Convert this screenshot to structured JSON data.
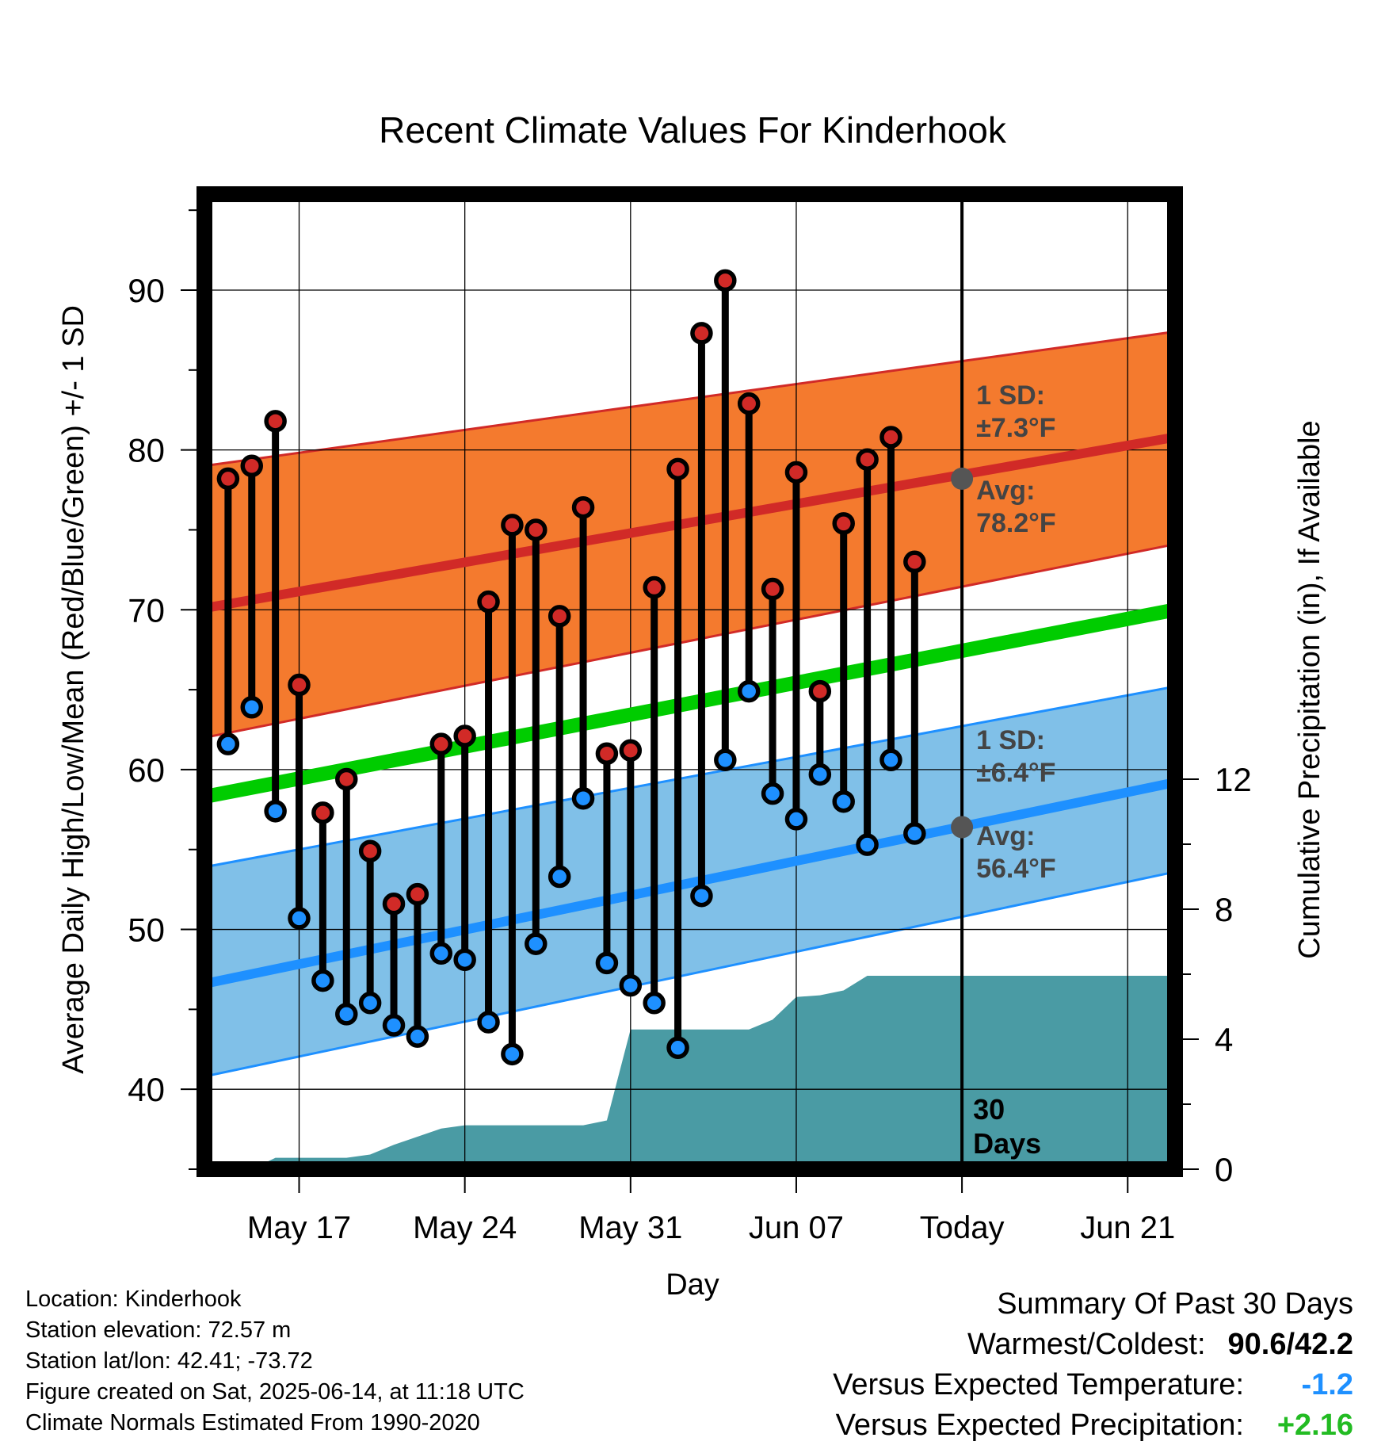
{
  "chart_data": {
    "type": "line",
    "title": "Recent Climate Values For Kinderhook",
    "xlabel": "Day",
    "ylabel": "Average Daily High/Low/Mean (Red/Blue/Green) +/- 1 SD",
    "y2label": "Cumulative Precipitation (in), If Available",
    "ylim": [
      35,
      96
    ],
    "y_ticks": [
      40,
      50,
      60,
      70,
      80,
      90
    ],
    "y2lim": [
      0,
      30
    ],
    "y2_ticks": [
      0,
      4,
      8,
      12
    ],
    "xlim": [
      "2025-05-13",
      "2025-06-23"
    ],
    "x_ticks": [
      {
        "date": "2025-05-17",
        "label": "May 17"
      },
      {
        "date": "2025-05-24",
        "label": "May 24"
      },
      {
        "date": "2025-05-31",
        "label": "May 31"
      },
      {
        "date": "2025-06-07",
        "label": "Jun 07"
      },
      {
        "date": "2025-06-14",
        "label": "Today"
      },
      {
        "date": "2025-06-21",
        "label": "Jun 21"
      }
    ],
    "grid": true,
    "today": "2025-06-14",
    "today_label": "30 Days",
    "normals": {
      "dates": [
        "2025-05-13",
        "2025-06-23"
      ],
      "high_avg": [
        70.1,
        80.8
      ],
      "high_upper": [
        79.0,
        87.4
      ],
      "high_lower": [
        62.0,
        74.1
      ],
      "low_avg": [
        46.6,
        59.2
      ],
      "low_upper": [
        53.9,
        65.2
      ],
      "low_lower": [
        40.8,
        53.6
      ],
      "mean_avg": [
        58.3,
        70.0
      ]
    },
    "high_annotation": {
      "sd_label": "1 SD:",
      "sd_value": "±7.3°F",
      "avg_label": "Avg:",
      "avg_value": "78.2°F",
      "value": 78.2
    },
    "low_annotation": {
      "sd_label": "1 SD:",
      "sd_value": "±6.4°F",
      "avg_label": "Avg:",
      "avg_value": "56.4°F",
      "value": 56.4
    },
    "daily": {
      "dates": [
        "2025-05-14",
        "2025-05-15",
        "2025-05-16",
        "2025-05-17",
        "2025-05-18",
        "2025-05-19",
        "2025-05-20",
        "2025-05-21",
        "2025-05-22",
        "2025-05-23",
        "2025-05-24",
        "2025-05-25",
        "2025-05-26",
        "2025-05-27",
        "2025-05-28",
        "2025-05-29",
        "2025-05-30",
        "2025-05-31",
        "2025-06-01",
        "2025-06-02",
        "2025-06-03",
        "2025-06-04",
        "2025-06-05",
        "2025-06-06",
        "2025-06-07",
        "2025-06-08",
        "2025-06-09",
        "2025-06-10",
        "2025-06-11",
        "2025-06-12",
        "2025-06-13"
      ],
      "high": [
        78.2,
        79.0,
        81.8,
        65.3,
        57.3,
        59.4,
        54.9,
        51.6,
        52.2,
        61.6,
        62.1,
        70.5,
        75.3,
        75.0,
        69.6,
        76.4,
        61.0,
        61.2,
        71.4,
        78.8,
        87.3,
        90.6,
        82.9,
        71.3,
        78.6,
        64.9,
        75.4,
        79.4,
        80.8,
        73.0,
        null
      ],
      "low": [
        61.6,
        63.9,
        57.4,
        50.7,
        46.8,
        44.7,
        45.4,
        44.0,
        43.3,
        48.5,
        48.1,
        44.2,
        42.2,
        49.1,
        53.3,
        58.2,
        47.9,
        46.5,
        45.4,
        42.6,
        52.1,
        60.6,
        64.9,
        58.5,
        56.9,
        59.7,
        58.0,
        55.3,
        60.6,
        56.0,
        null
      ]
    },
    "precipitation": {
      "dates": [
        "2025-05-13",
        "2025-05-15",
        "2025-05-16",
        "2025-05-19",
        "2025-05-20",
        "2025-05-21",
        "2025-05-22",
        "2025-05-23",
        "2025-05-24",
        "2025-05-29",
        "2025-05-30",
        "2025-05-31",
        "2025-06-05",
        "2025-06-06",
        "2025-06-07",
        "2025-06-08",
        "2025-06-09",
        "2025-06-10",
        "2025-06-23"
      ],
      "values": [
        0,
        0,
        0.35,
        0.35,
        0.45,
        0.75,
        1.0,
        1.25,
        1.35,
        1.35,
        1.5,
        4.3,
        4.3,
        4.6,
        5.3,
        5.35,
        5.5,
        5.95,
        5.95
      ]
    }
  },
  "footer": {
    "location": "Location: Kinderhook",
    "elevation": "Station elevation: 72.57 m",
    "latlon": "Station lat/lon: 42.41; -73.72",
    "created": "Figure created on Sat, 2025-06-14, at 11:18 UTC",
    "normals": "Climate Normals Estimated From 1990-2020"
  },
  "summary": {
    "heading": "Summary Of Past 30 Days",
    "warm_cold_label": "Warmest/Coldest:",
    "warm_cold_value": "90.6/42.2",
    "temp_label": "Versus Expected Temperature:",
    "temp_value": "-1.2",
    "precip_label": "Versus Expected Precipitation:",
    "precip_value": "+2.16",
    "colors": {
      "temp": "#1e90ff",
      "precip": "#22bb22"
    }
  },
  "colors": {
    "high_band": "#f47a2e",
    "high_line": "#d12a27",
    "low_band": "#80c0e8",
    "low_line": "#1e90ff",
    "mean_line": "#00cc00",
    "precip": "#4a9ba4",
    "high_dot": "#d12a27",
    "low_dot": "#1e90ff"
  }
}
